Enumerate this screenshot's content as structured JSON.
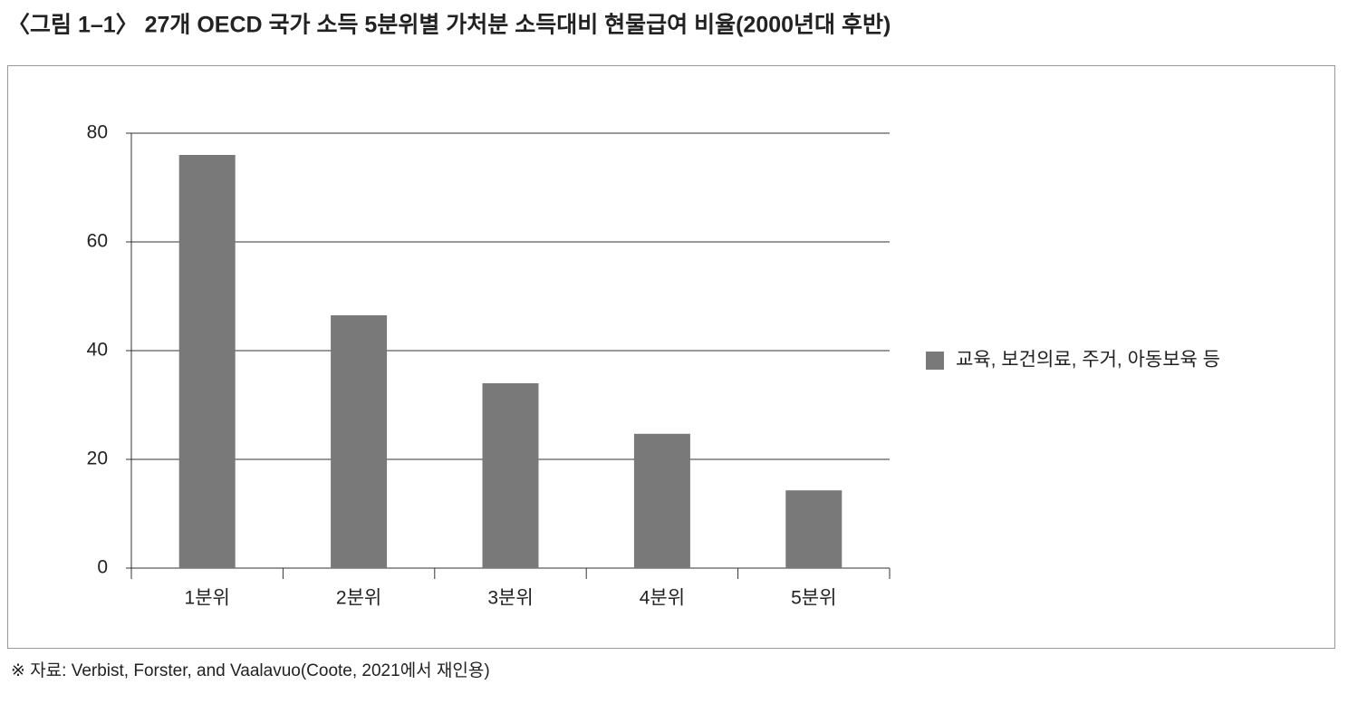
{
  "chart_data": {
    "type": "bar",
    "title": "〈그림 1–1〉 27개 OECD 국가 소득 5분위별 가처분 소득대비 현물급여 비율(2000년대 후반)",
    "source": "※ 자료: Verbist, Forster, and Vaalavuo(Coote, 2021에서 재인용)",
    "categories": [
      "1분위",
      "2분위",
      "3분위",
      "4분위",
      "5분위"
    ],
    "series": [
      {
        "name": "교육, 보건의료, 주거, 아동보육 등",
        "color": "#797979",
        "values": [
          76,
          46.5,
          34,
          24.7,
          14.3
        ]
      }
    ],
    "ylim": [
      0,
      80
    ],
    "yticks": [
      0,
      20,
      40,
      60,
      80
    ],
    "grid": true,
    "legend": "right"
  }
}
